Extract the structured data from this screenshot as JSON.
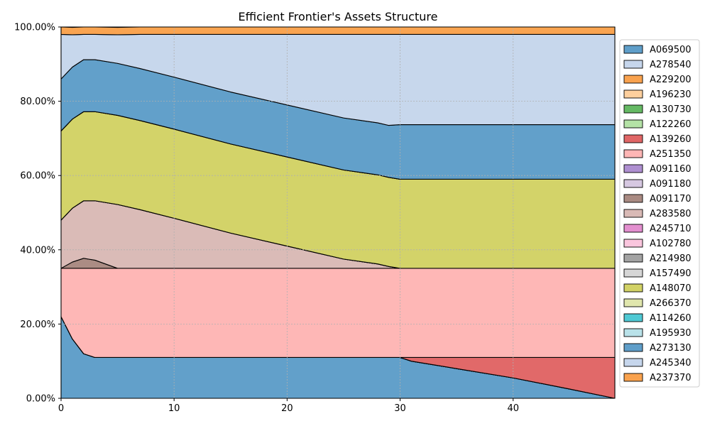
{
  "chart_data": {
    "type": "area",
    "stacked": true,
    "title": "Efficient Frontier's Assets Structure",
    "xlabel": "",
    "ylabel": "",
    "xlim": [
      0,
      49
    ],
    "ylim": [
      0,
      1
    ],
    "x_ticks": [
      0,
      10,
      20,
      30,
      40
    ],
    "x_tick_labels": [
      "0",
      "10",
      "20",
      "30",
      "40"
    ],
    "y_ticks": [
      0,
      0.2,
      0.4,
      0.6,
      0.8,
      1.0
    ],
    "y_tick_labels": [
      "0.00%",
      "20.00%",
      "40.00%",
      "60.00%",
      "80.00%",
      "100.00%"
    ],
    "grid": true,
    "legend_position": "right",
    "x": [
      0,
      1,
      2,
      3,
      5,
      7,
      10,
      15,
      20,
      25,
      28,
      29,
      30,
      31,
      35,
      40,
      45,
      49
    ],
    "series": [
      {
        "name": "A069500",
        "color": "#5f9ec9",
        "values": [
          0.22,
          0.16,
          0.12,
          0.11,
          0.11,
          0.11,
          0.11,
          0.11,
          0.11,
          0.11,
          0.11,
          0.11,
          0.11,
          0.1,
          0.08,
          0.055,
          0.025,
          0.0
        ]
      },
      {
        "name": "A278540",
        "color": "#c6d6ec",
        "values": [
          0,
          0,
          0,
          0,
          0,
          0,
          0,
          0,
          0,
          0,
          0,
          0,
          0,
          0,
          0,
          0,
          0,
          0
        ]
      },
      {
        "name": "A229200",
        "color": "#f9a24e",
        "values": [
          0,
          0,
          0,
          0,
          0,
          0,
          0,
          0,
          0,
          0,
          0,
          0,
          0,
          0,
          0,
          0,
          0,
          0
        ]
      },
      {
        "name": "A196230",
        "color": "#fdcf9d",
        "values": [
          0,
          0,
          0,
          0,
          0,
          0,
          0,
          0,
          0,
          0,
          0,
          0,
          0,
          0,
          0,
          0,
          0,
          0
        ]
      },
      {
        "name": "A130730",
        "color": "#65b964",
        "values": [
          0,
          0,
          0,
          0,
          0,
          0,
          0,
          0,
          0,
          0,
          0,
          0,
          0,
          0,
          0,
          0,
          0,
          0
        ]
      },
      {
        "name": "A122260",
        "color": "#b4e2a6",
        "values": [
          0,
          0,
          0,
          0,
          0,
          0,
          0,
          0,
          0,
          0,
          0,
          0,
          0,
          0,
          0,
          0,
          0,
          0
        ]
      },
      {
        "name": "A139260",
        "color": "#e06666",
        "values": [
          0,
          0,
          0,
          0,
          0,
          0,
          0,
          0,
          0,
          0,
          0,
          0,
          0,
          0.01,
          0.03,
          0.055,
          0.085,
          0.11
        ]
      },
      {
        "name": "A251350",
        "color": "#feb6b5",
        "values": [
          0.13,
          0.19,
          0.23,
          0.24,
          0.24,
          0.24,
          0.24,
          0.24,
          0.24,
          0.24,
          0.24,
          0.24,
          0.24,
          0.24,
          0.24,
          0.24,
          0.24,
          0.24
        ]
      },
      {
        "name": "A091160",
        "color": "#ae8fd0",
        "values": [
          0,
          0,
          0,
          0,
          0,
          0,
          0,
          0,
          0,
          0,
          0,
          0,
          0,
          0,
          0,
          0,
          0,
          0
        ]
      },
      {
        "name": "A091180",
        "color": "#d6c8e1",
        "values": [
          0,
          0,
          0,
          0,
          0,
          0,
          0,
          0,
          0,
          0,
          0,
          0,
          0,
          0,
          0,
          0,
          0,
          0
        ]
      },
      {
        "name": "A091170",
        "color": "#a98a82",
        "values": [
          0,
          0.017,
          0.027,
          0.022,
          0.0,
          0,
          0,
          0,
          0,
          0,
          0,
          0,
          0,
          0,
          0,
          0,
          0,
          0
        ]
      },
      {
        "name": "A283580",
        "color": "#d9bab6",
        "values": [
          0.13,
          0.145,
          0.155,
          0.16,
          0.172,
          0.158,
          0.135,
          0.095,
          0.06,
          0.025,
          0.012,
          0.005,
          0,
          0,
          0,
          0,
          0,
          0
        ]
      },
      {
        "name": "A245710",
        "color": "#e38fcf",
        "values": [
          0,
          0,
          0,
          0,
          0,
          0,
          0,
          0,
          0,
          0,
          0,
          0,
          0,
          0,
          0,
          0,
          0,
          0
        ]
      },
      {
        "name": "A102780",
        "color": "#fac6de",
        "values": [
          0,
          0,
          0,
          0,
          0,
          0,
          0,
          0,
          0,
          0,
          0,
          0,
          0,
          0,
          0,
          0,
          0,
          0
        ]
      },
      {
        "name": "A214980",
        "color": "#a3a3a3",
        "values": [
          0,
          0,
          0,
          0,
          0,
          0,
          0,
          0,
          0,
          0,
          0,
          0,
          0,
          0,
          0,
          0,
          0,
          0
        ]
      },
      {
        "name": "A157490",
        "color": "#d6d6d6",
        "values": [
          0,
          0,
          0,
          0,
          0,
          0,
          0,
          0,
          0,
          0,
          0,
          0,
          0,
          0,
          0,
          0,
          0,
          0
        ]
      },
      {
        "name": "A148070",
        "color": "#d2d266",
        "values": [
          0.24,
          0.24,
          0.24,
          0.24,
          0.24,
          0.24,
          0.24,
          0.24,
          0.24,
          0.24,
          0.24,
          0.24,
          0.24,
          0.24,
          0.24,
          0.24,
          0.24,
          0.24
        ]
      },
      {
        "name": "A266370",
        "color": "#e0e6ad",
        "values": [
          0,
          0,
          0,
          0,
          0,
          0,
          0,
          0,
          0,
          0,
          0,
          0,
          0,
          0,
          0,
          0,
          0,
          0
        ]
      },
      {
        "name": "A114260",
        "color": "#4fc9d4",
        "values": [
          0,
          0,
          0,
          0,
          0,
          0,
          0,
          0,
          0,
          0,
          0,
          0,
          0,
          0,
          0,
          0,
          0,
          0
        ]
      },
      {
        "name": "A195930",
        "color": "#b9e2e9",
        "values": [
          0,
          0,
          0,
          0,
          0,
          0,
          0,
          0,
          0,
          0,
          0,
          0,
          0,
          0,
          0,
          0,
          0,
          0
        ]
      },
      {
        "name": "A273130",
        "color": "#5f9ec9",
        "values": [
          0.14,
          0.14,
          0.14,
          0.14,
          0.14,
          0.14,
          0.14,
          0.14,
          0.14,
          0.14,
          0.14,
          0.14,
          0.147,
          0.147,
          0.147,
          0.147,
          0.147,
          0.147
        ]
      },
      {
        "name": "A245340",
        "color": "#c6d6ec",
        "values": [
          0.12,
          0.087,
          0.068,
          0.068,
          0.077,
          0.092,
          0.115,
          0.155,
          0.19,
          0.225,
          0.238,
          0.245,
          0.243,
          0.243,
          0.243,
          0.243,
          0.243,
          0.243
        ]
      },
      {
        "name": "A237370",
        "color": "#f9a24e",
        "values": [
          0.02,
          0.02,
          0.02,
          0.02,
          0.02,
          0.02,
          0.02,
          0.02,
          0.02,
          0.02,
          0.02,
          0.02,
          0.02,
          0.02,
          0.02,
          0.02,
          0.02,
          0.02
        ]
      }
    ]
  }
}
